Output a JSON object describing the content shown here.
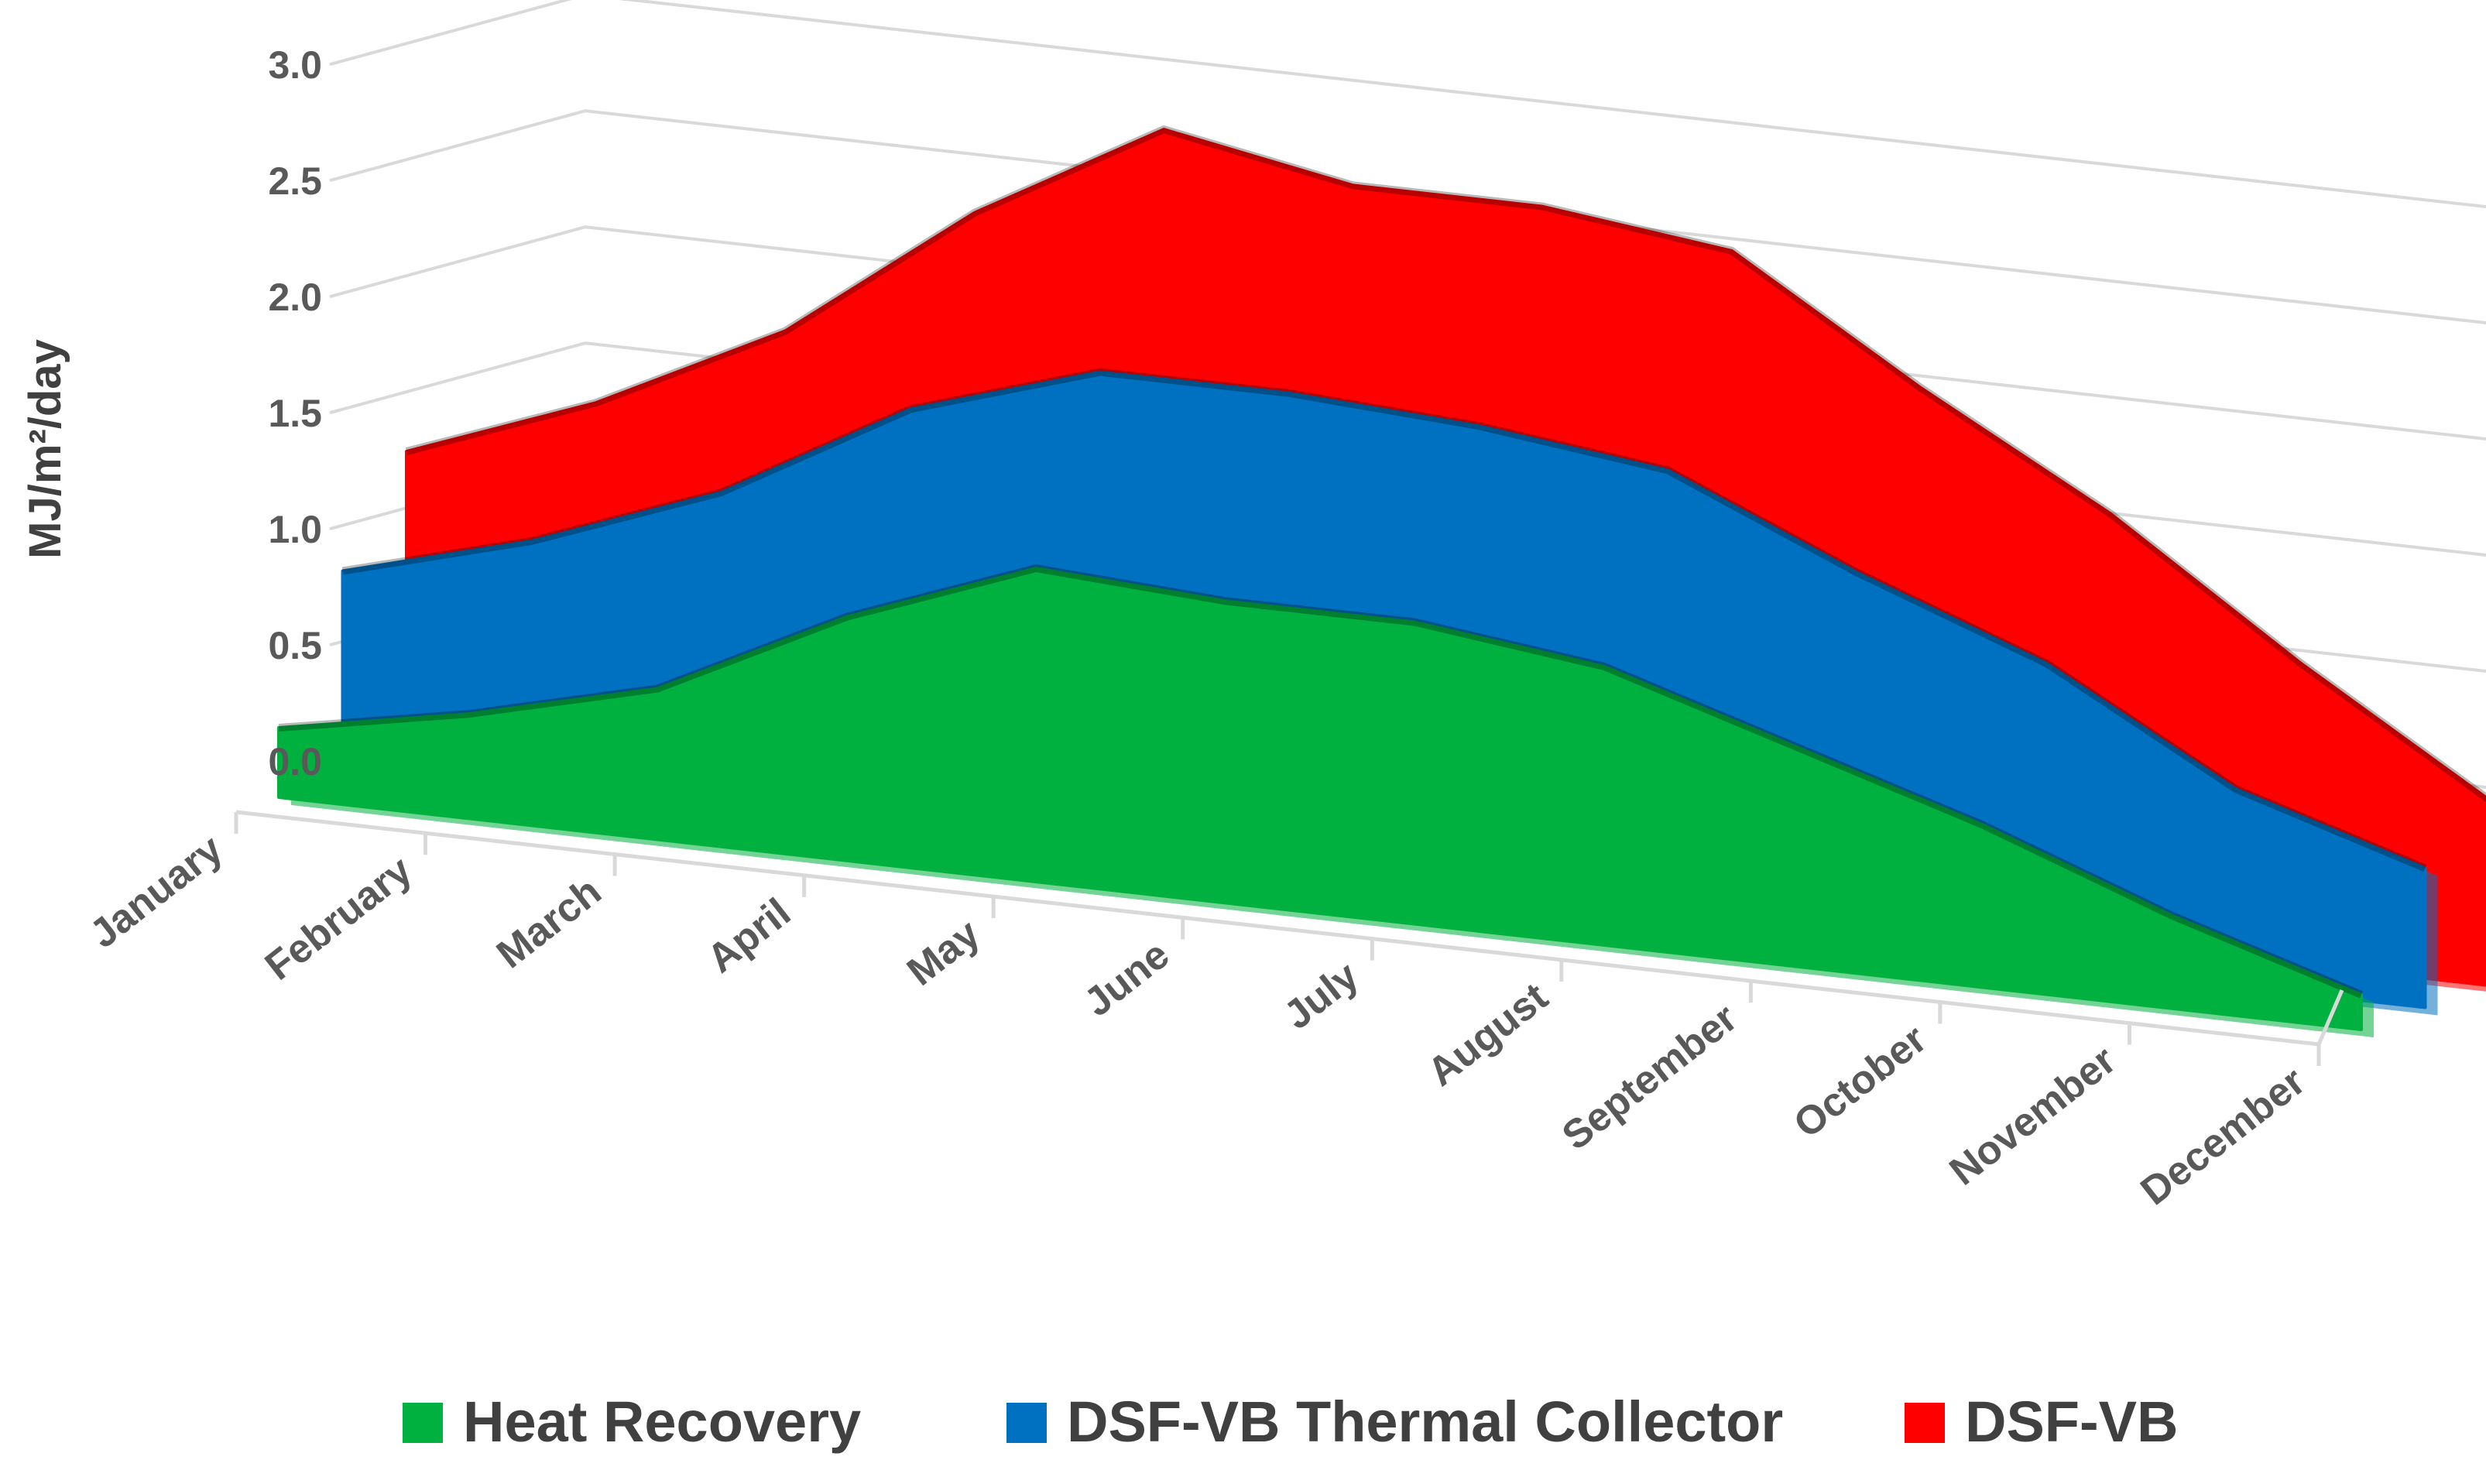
{
  "chart_data": {
    "type": "area",
    "variant": "3d-area",
    "title": "",
    "xlabel": "",
    "ylabel": "MJ/m²/day",
    "ylim": [
      0,
      3.0
    ],
    "ytick_labels": [
      "0.0",
      "0.5",
      "1.0",
      "1.5",
      "2.0",
      "2.5",
      "3.0"
    ],
    "grid": true,
    "legend_position": "bottom",
    "categories": [
      "January",
      "February",
      "March",
      "April",
      "May",
      "June",
      "July",
      "August",
      "September",
      "October",
      "November",
      "December"
    ],
    "series": [
      {
        "name": "Heat Recovery",
        "color": "#00b140",
        "values": [
          0.3,
          0.45,
          0.65,
          1.05,
          1.35,
          1.3,
          1.3,
          1.2,
          0.95,
          0.7,
          0.4,
          0.15
        ]
      },
      {
        "name": "DSF-VB Thermal Collector",
        "color": "#0070c0",
        "values": [
          0.88,
          1.1,
          1.4,
          1.85,
          2.1,
          2.1,
          2.05,
          1.95,
          1.6,
          1.3,
          0.85,
          0.6
        ]
      },
      {
        "name": "DSF-VB",
        "color": "#ff0000",
        "values": [
          1.3,
          1.6,
          2.0,
          2.6,
          3.05,
          2.9,
          2.9,
          2.8,
          2.3,
          1.85,
          1.3,
          0.8
        ]
      }
    ]
  }
}
